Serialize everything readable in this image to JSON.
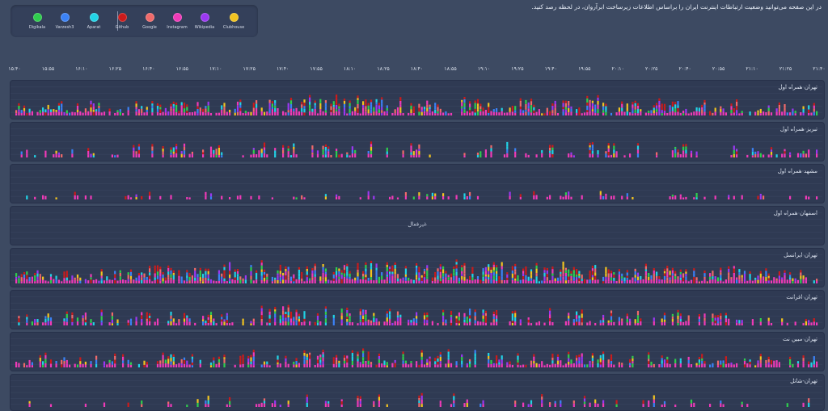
{
  "intro_text": "در این صفحه می‌توانید وضعیت ارتباطات اینترنت ایران را براساس اطلاعات زیرساخت ابرآروان، در لحظه رصد کنید.",
  "legend": [
    {
      "label": "Digikala",
      "color": "#2fce4d"
    },
    {
      "label": "Varzesh3",
      "color": "#3b82f6"
    },
    {
      "label": "Aparat",
      "color": "#22d3e6"
    },
    {
      "label": "Github",
      "color": "#cc1b1b"
    },
    {
      "label": "Google",
      "color": "#f06a6a"
    },
    {
      "label": "Instagram",
      "color": "#f03ab8"
    },
    {
      "label": "Wikipedia",
      "color": "#9b38f2"
    },
    {
      "label": "Clubhouse",
      "color": "#f2c420"
    }
  ],
  "time_ticks": [
    "۱۵:۴۰",
    "۱۵:۵۵",
    "۱۶:۱۰",
    "۱۶:۲۵",
    "۱۶:۴۰",
    "۱۶:۵۵",
    "۱۷:۱۰",
    "۱۷:۲۵",
    "۱۷:۴۰",
    "۱۷:۵۵",
    "۱۸:۱۰",
    "۱۸:۲۵",
    "۱۸:۴۰",
    "۱۸:۵۵",
    "۱۹:۱۰",
    "۱۹:۲۵",
    "۱۹:۴۰",
    "۱۹:۵۵",
    "۲۰:۱۰",
    "۲۰:۲۵",
    "۲۰:۴۰",
    "۲۰:۵۵",
    "۲۱:۱۰",
    "۲۱:۲۵",
    "۲۱:۴۰"
  ],
  "panels": [
    {
      "title": "تهران-همراه اول",
      "status": "",
      "density": 0.85,
      "peak": 0.7
    },
    {
      "title": "تبریز-همراه اول",
      "status": "",
      "density": 0.45,
      "peak": 0.5
    },
    {
      "title": "مشهد-همراه اول",
      "status": "",
      "density": 0.3,
      "peak": 0.15
    },
    {
      "title": "اصفهان-همراه اول",
      "status": "غیرفعال",
      "density": 0,
      "peak": 0
    },
    {
      "title": "تهران-ایرانسل",
      "status": "",
      "density": 0.95,
      "peak": 0.85
    },
    {
      "title": "تهران-افرانت",
      "status": "",
      "density": 0.6,
      "peak": 0.65
    },
    {
      "title": "تهران-مبین نت",
      "status": "",
      "density": 0.7,
      "peak": 0.55
    },
    {
      "title": "تهران-شاتل",
      "status": "",
      "density": 0.2,
      "peak": 0.3
    }
  ]
}
